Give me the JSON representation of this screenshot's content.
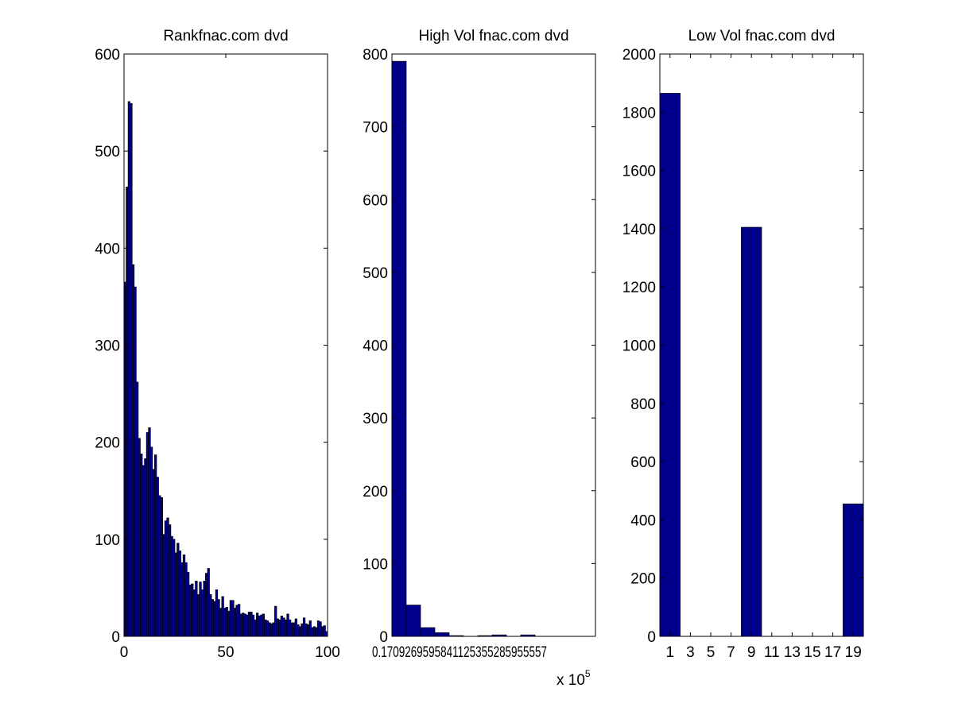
{
  "colors": {
    "bar_fill": "#00008B",
    "bar_edge": "#000000",
    "axes": "#000000",
    "background": "#ffffff"
  },
  "chart_data": [
    {
      "type": "bar",
      "title": "Rankfnac.com dvd",
      "xlabel": "",
      "ylabel": "",
      "xlim": [
        0,
        100
      ],
      "ylim": [
        0,
        600
      ],
      "x_ticks": [
        "0",
        "50",
        "100"
      ],
      "y_ticks": [
        "0",
        "100",
        "200",
        "300",
        "400",
        "500",
        "600"
      ],
      "grid": false,
      "bin_start": 0,
      "bin_width": 1,
      "values": [
        365,
        463,
        551,
        549,
        383,
        360,
        262,
        204,
        188,
        176,
        183,
        210,
        215,
        195,
        172,
        187,
        164,
        145,
        143,
        105,
        119,
        122,
        115,
        103,
        100,
        86,
        96,
        88,
        76,
        84,
        76,
        66,
        53,
        54,
        48,
        57,
        43,
        56,
        48,
        57,
        65,
        70,
        43,
        38,
        36,
        48,
        38,
        29,
        41,
        29,
        30,
        26,
        37,
        37,
        29,
        32,
        33,
        23,
        24,
        23,
        22,
        25,
        25,
        22,
        17,
        24,
        21,
        22,
        23,
        17,
        16,
        14,
        13,
        14,
        31,
        18,
        17,
        21,
        19,
        17,
        23,
        17,
        14,
        14,
        18,
        12,
        10,
        13,
        19,
        13,
        12,
        16,
        9,
        10,
        9,
        16,
        15,
        10,
        11,
        5
      ]
    },
    {
      "type": "bar",
      "title": "High Vol fnac.com dvd",
      "xlabel": "",
      "ylabel": "",
      "x_multiplier": "x 10",
      "x_multiplier_exp": "5",
      "x_tick_text": "0.1709269595841125355285955557",
      "ylim": [
        0,
        800
      ],
      "y_ticks": [
        "0",
        "100",
        "200",
        "300",
        "400",
        "500",
        "600",
        "700",
        "800"
      ],
      "grid": false,
      "bins": 15,
      "values": [
        790,
        43,
        12,
        5,
        1,
        0,
        1,
        2,
        0,
        2,
        0,
        0,
        0,
        0,
        0
      ]
    },
    {
      "type": "bar",
      "title": "Low Vol fnac.com dvd",
      "xlabel": "",
      "ylabel": "",
      "xlim": [
        0,
        20
      ],
      "ylim": [
        0,
        2000
      ],
      "x_ticks": [
        "1",
        "3",
        "5",
        "7",
        "9",
        "11",
        "13",
        "15",
        "17",
        "19"
      ],
      "y_ticks": [
        "0",
        "200",
        "400",
        "600",
        "800",
        "1000",
        "1200",
        "1400",
        "1600",
        "1800",
        "2000"
      ],
      "grid": false,
      "bar_width": 2,
      "bars": [
        {
          "x": 1,
          "value": 1865
        },
        {
          "x": 9,
          "value": 1405
        },
        {
          "x": 19,
          "value": 455
        }
      ]
    }
  ]
}
